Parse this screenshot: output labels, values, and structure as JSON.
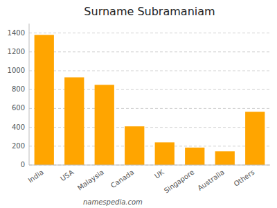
{
  "chart_data": {
    "type": "bar",
    "title": "Surname Subramaniam",
    "categories": [
      "India",
      "USA",
      "Malaysia",
      "Canada",
      "UK",
      "Singapore",
      "Australia",
      "Others"
    ],
    "values": [
      1380,
      930,
      850,
      410,
      240,
      185,
      145,
      565
    ],
    "color": "#FFA500",
    "ylim": [
      0,
      1500
    ],
    "yticks": [
      0,
      200,
      400,
      600,
      800,
      1000,
      1200,
      1400
    ],
    "grid": true,
    "annotations": [
      "namespedia.com"
    ]
  }
}
